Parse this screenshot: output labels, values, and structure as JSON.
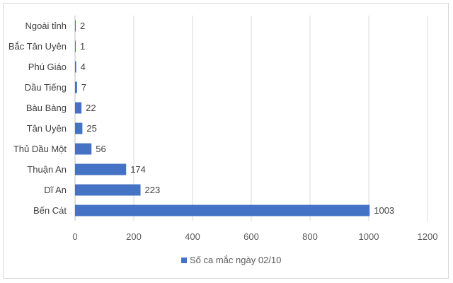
{
  "chart_data": {
    "type": "bar",
    "orientation": "horizontal",
    "categories": [
      "Ngoài tỉnh",
      "Bắc Tân Uyên",
      "Phú Giáo",
      "Dầu Tiếng",
      "Bàu Bàng",
      "Tân Uyên",
      "Thủ Dầu Một",
      "Thuận An",
      "Dĩ An",
      "Bến Cát"
    ],
    "series": [
      {
        "name": "Số ca mắc ngày 02/10",
        "values": [
          2,
          1,
          4,
          7,
          22,
          25,
          56,
          174,
          223,
          1003
        ],
        "color": "#4472c4"
      }
    ],
    "xlim": [
      0,
      1200
    ],
    "xticks": [
      0,
      200,
      400,
      600,
      800,
      1000,
      1200
    ],
    "grid": true,
    "legend_position": "bottom",
    "data_labels": true
  }
}
